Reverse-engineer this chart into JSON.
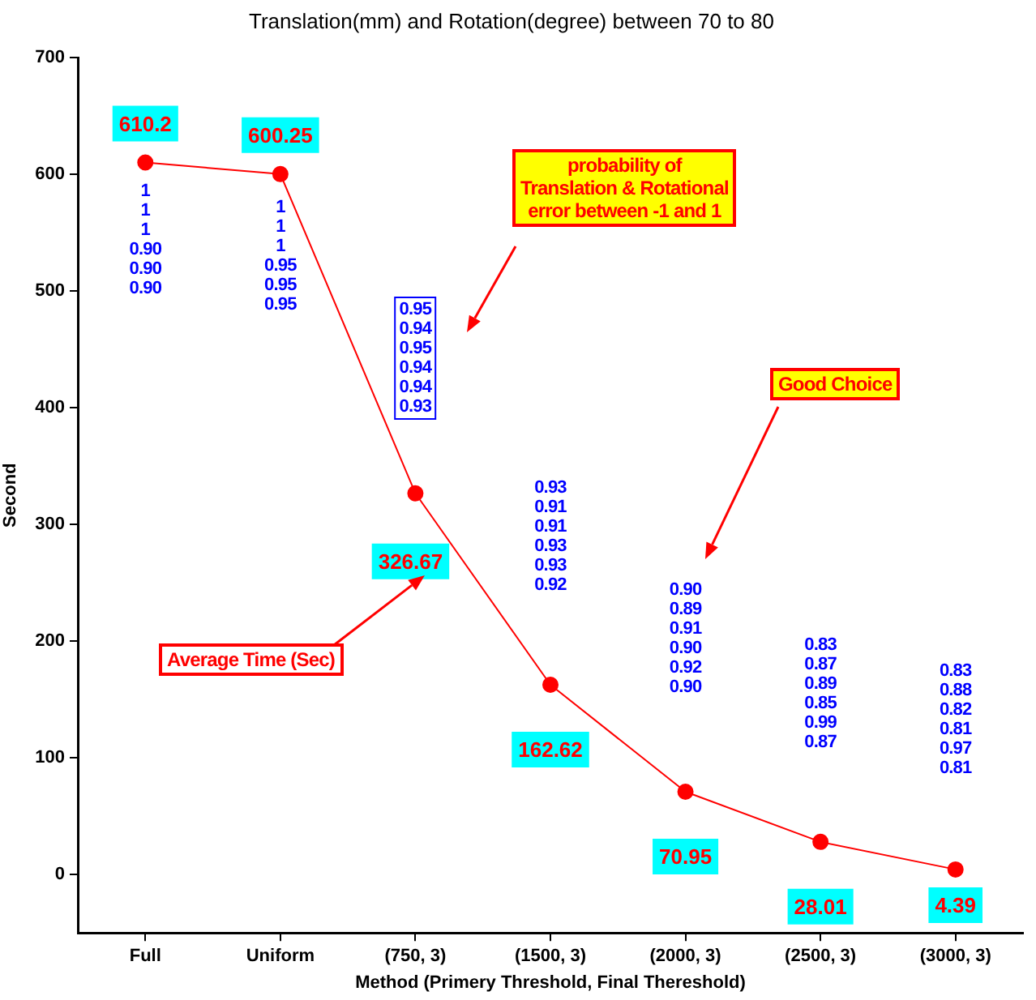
{
  "chart_data": {
    "type": "line",
    "title": "Translation(mm) and Rotation(degree) between 70 to 80",
    "xlabel": "Method (Primery Threshold, Final Thereshold)",
    "ylabel": "Second",
    "categories": [
      "Full",
      "Uniform",
      "(750, 3)",
      "(1500, 3)",
      "(2000, 3)",
      "(2500, 3)",
      "(3000, 3)"
    ],
    "series": [
      {
        "color": "#ff0000",
        "values": [
          610.2,
          600.25,
          326.67,
          162.62,
          70.95,
          28.01,
          4.39
        ]
      }
    ],
    "data_labels": true,
    "marker": "circle",
    "line_style": "solid",
    "grid": false,
    "legend": false,
    "ylim": [
      -50,
      700
    ],
    "yticks": [
      0,
      100,
      200,
      300,
      400,
      500,
      600,
      700
    ],
    "annotations": [
      "1\n1\n1\n0.90\n0.90\n0.90",
      "1\n1\n1\n0.95\n0.95\n0.95",
      "0.95\n0.94\n0.95\n0.94\n0.94\n0.93",
      "0.93\n0.91\n0.91\n0.93\n0.93\n0.92",
      "0.90\n0.89\n0.91\n0.90\n0.92\n0.90",
      "0.83\n0.87\n0.89\n0.85\n0.99\n0.87",
      "0.83\n0.88\n0.82\n0.81\n0.97\n0.81",
      "probability of\nTranslation & Rotational\nerror between -1 and 1",
      "Good Choice",
      "Average Time (Sec)"
    ]
  }
}
